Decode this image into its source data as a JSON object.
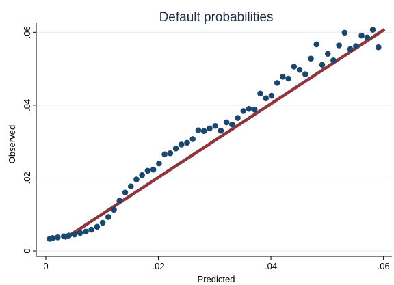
{
  "chart_data": {
    "type": "scatter",
    "title": "Default probabilities",
    "xlabel": "Predicted",
    "ylabel": "Observed",
    "xlim": [
      -0.0017,
      0.0615
    ],
    "ylim": [
      -0.0015,
      0.0625
    ],
    "xticks": [
      0,
      0.02,
      0.04,
      0.06
    ],
    "xtick_labels": [
      "0",
      ".02",
      ".04",
      ".06"
    ],
    "yticks": [
      0,
      0.02,
      0.04,
      0.06
    ],
    "ytick_labels": [
      "0",
      ".02",
      ".04",
      ".06"
    ],
    "grid": true,
    "legend": "none",
    "colors": {
      "points": "#1a476f",
      "line": "#90353b",
      "title": "#1e2b48",
      "grid": "#e8eff2"
    },
    "series": [
      {
        "type": "scatter",
        "x": [
          0.0007,
          0.0012,
          0.0021,
          0.0032,
          0.0041,
          0.0051,
          0.0061,
          0.0071,
          0.0081,
          0.0091,
          0.0101,
          0.0111,
          0.0121,
          0.0131,
          0.0141,
          0.0151,
          0.0161,
          0.0171,
          0.0181,
          0.0191,
          0.0201,
          0.0211,
          0.0221,
          0.0231,
          0.0241,
          0.0251,
          0.0261,
          0.0271,
          0.0281,
          0.0291,
          0.0301,
          0.0311,
          0.0321,
          0.0331,
          0.0341,
          0.0351,
          0.0361,
          0.0371,
          0.0381,
          0.0391,
          0.0401,
          0.0411,
          0.0421,
          0.0431,
          0.0441,
          0.0451,
          0.0461,
          0.0471,
          0.0481,
          0.0491,
          0.0501,
          0.0511,
          0.0521,
          0.0531,
          0.0541,
          0.0551,
          0.0561,
          0.0571,
          0.0581,
          0.0591
        ],
        "y": [
          0.0033,
          0.0035,
          0.0037,
          0.004,
          0.0042,
          0.0045,
          0.0049,
          0.0053,
          0.0058,
          0.0066,
          0.0077,
          0.0093,
          0.0113,
          0.0138,
          0.016,
          0.0177,
          0.0196,
          0.0208,
          0.022,
          0.0223,
          0.024,
          0.0265,
          0.0268,
          0.0281,
          0.0292,
          0.0297,
          0.0307,
          0.0331,
          0.0329,
          0.0336,
          0.0343,
          0.033,
          0.0353,
          0.0347,
          0.0365,
          0.0384,
          0.039,
          0.0388,
          0.0432,
          0.0419,
          0.0426,
          0.0461,
          0.0478,
          0.0473,
          0.0506,
          0.0497,
          0.0485,
          0.0528,
          0.0567,
          0.0511,
          0.0541,
          0.0523,
          0.0564,
          0.0599,
          0.0554,
          0.0562,
          0.0591,
          0.0586,
          0.0607,
          0.0559
        ]
      },
      {
        "type": "line",
        "x": [
          0.0033,
          0.0602
        ],
        "y": [
          0.0033,
          0.0608
        ]
      }
    ]
  }
}
